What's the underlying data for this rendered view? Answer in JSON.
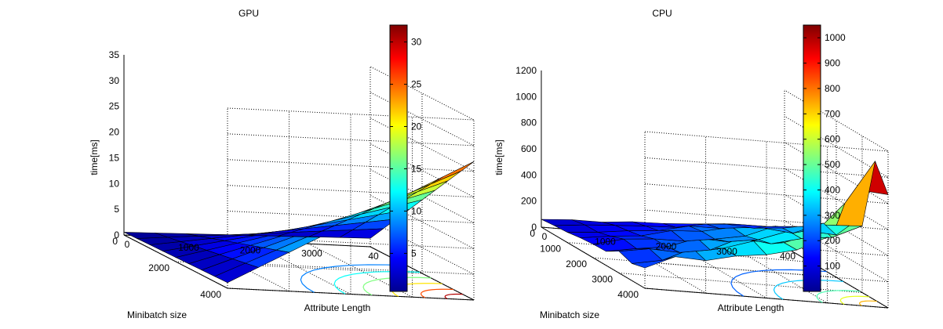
{
  "chart_data": [
    {
      "type": "surface3d",
      "title": "GPU",
      "xlabel": "Attribute Length",
      "ylabel": "Minibatch size",
      "zlabel": "time[ms]",
      "x_ticks": [
        "0",
        "1000",
        "2000",
        "3000",
        "40"
      ],
      "y_ticks": [
        "0",
        "2000",
        "4000"
      ],
      "z_ticks": [
        "0",
        "5",
        "10",
        "15",
        "20",
        "25",
        "30",
        "35"
      ],
      "zlim": [
        0,
        35
      ],
      "colorbar": {
        "ticks": [
          "5",
          "10",
          "15",
          "20",
          "25",
          "30"
        ],
        "range": [
          0.5,
          32
        ]
      },
      "grid": true,
      "x": [
        0,
        500,
        1000,
        1500,
        2000,
        2500,
        3000,
        3500,
        4000
      ],
      "y": [
        0,
        500,
        1000,
        1500,
        2000,
        2500,
        3000,
        3500,
        4000
      ],
      "z_max_corner": 31,
      "note_values_ms": {
        "at_max_attr_max_batch": 31,
        "at_max_attr_min_batch": 0.5,
        "at_min_attr_max_batch": 1.5
      }
    },
    {
      "type": "surface3d",
      "title": "CPU",
      "xlabel": "Attribute Length",
      "ylabel": "Minibatch size",
      "zlabel": "time[ms]",
      "x_ticks": [
        "0",
        "1000",
        "2000",
        "3000",
        "400"
      ],
      "y_ticks": [
        "0",
        "1000",
        "2000",
        "3000",
        "4000"
      ],
      "z_ticks": [
        "0",
        "200",
        "400",
        "600",
        "800",
        "1000",
        "1200"
      ],
      "zlim": [
        0,
        1200
      ],
      "colorbar": {
        "ticks": [
          "100",
          "200",
          "300",
          "400",
          "500",
          "600",
          "700",
          "800",
          "900",
          "1000"
        ],
        "range": [
          0,
          1050
        ]
      },
      "grid": true,
      "x": [
        0,
        500,
        1000,
        1500,
        2000,
        2500,
        3000,
        3500,
        4000
      ],
      "y": [
        0,
        500,
        1000,
        1500,
        2000,
        2500,
        3000,
        3500,
        4000
      ],
      "z_max_corner": 900
    }
  ]
}
